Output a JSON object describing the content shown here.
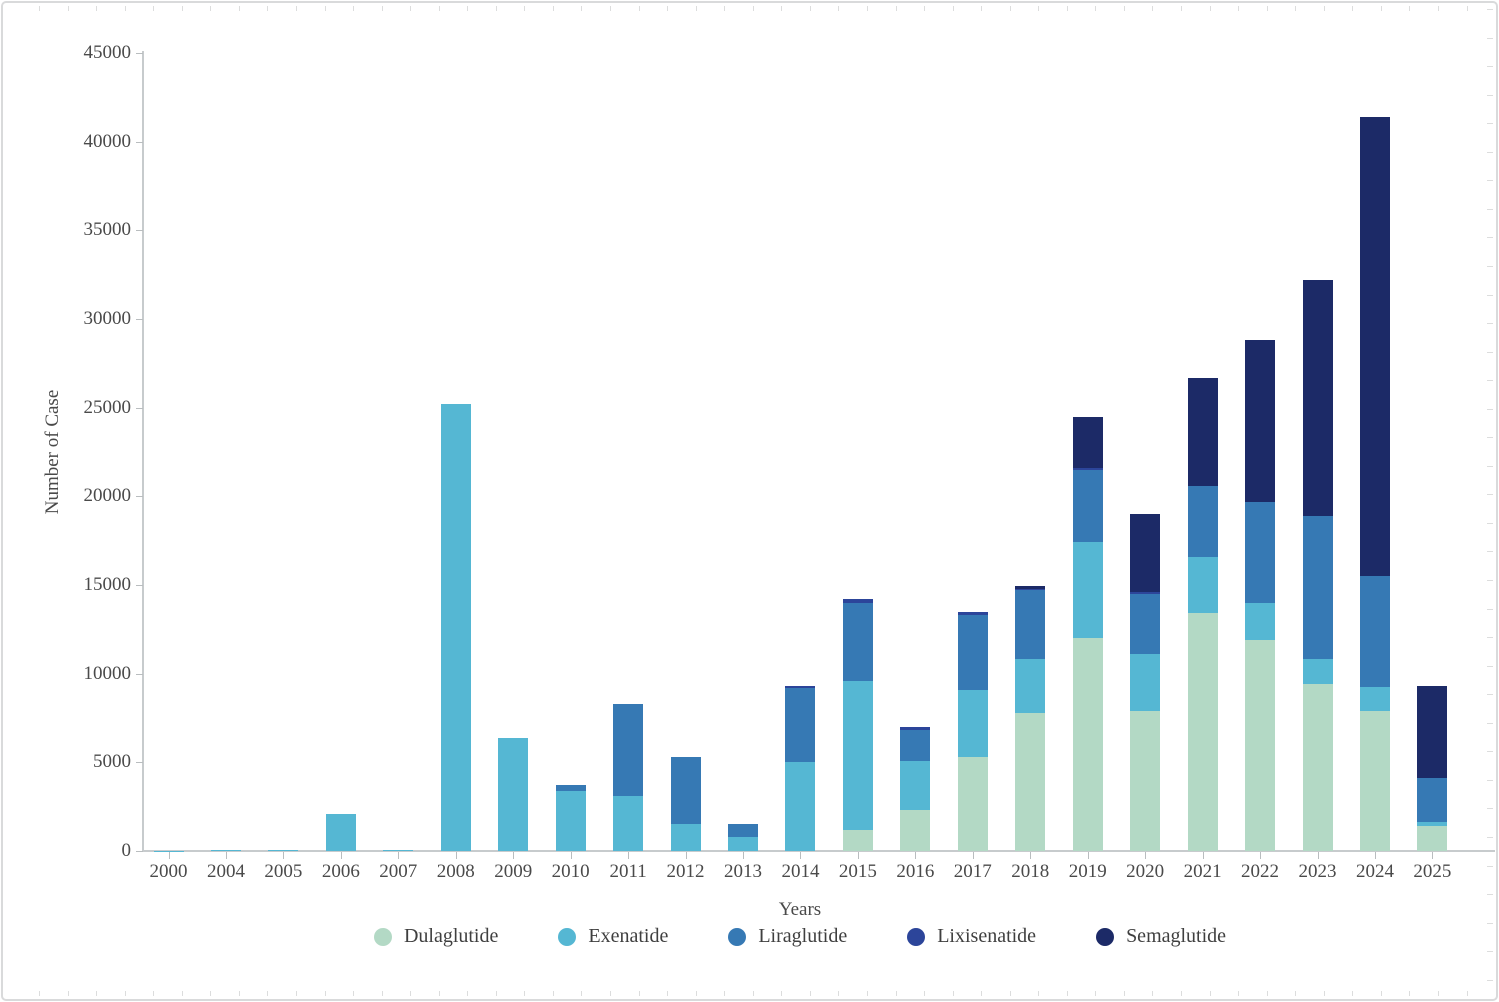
{
  "chart_data": {
    "type": "bar",
    "stacked": true,
    "title": "",
    "xlabel": "Years",
    "ylabel": "Number of Case",
    "ylim": [
      0,
      45000
    ],
    "y_tick_step": 5000,
    "y_tick_labels": [
      "0",
      "5000",
      "10000",
      "15000",
      "20000",
      "25000",
      "30000",
      "35000",
      "40000",
      "45000"
    ],
    "grid": false,
    "legend_position": "bottom",
    "categories": [
      "2000",
      "2004",
      "2005",
      "2006",
      "2007",
      "2008",
      "2009",
      "2010",
      "2011",
      "2012",
      "2013",
      "2014",
      "2015",
      "2016",
      "2017",
      "2018",
      "2019",
      "2020",
      "2021",
      "2022",
      "2023",
      "2024",
      "2025"
    ],
    "series": [
      {
        "name": "Dulaglutide",
        "color": "#b3d9c5",
        "values": [
          0,
          0,
          0,
          0,
          0,
          0,
          0,
          0,
          0,
          0,
          0,
          0,
          1200,
          2300,
          5300,
          7800,
          12000,
          7900,
          13400,
          11900,
          9400,
          7900,
          1400
        ]
      },
      {
        "name": "Exenatide",
        "color": "#55b7d3",
        "values": [
          10,
          30,
          40,
          2100,
          80,
          25200,
          6400,
          3400,
          3100,
          1500,
          800,
          5000,
          8400,
          2800,
          3800,
          3000,
          5400,
          3200,
          3200,
          2100,
          1400,
          1350,
          250
        ]
      },
      {
        "name": "Liraglutide",
        "color": "#3679b4",
        "values": [
          0,
          0,
          0,
          0,
          0,
          0,
          0,
          300,
          5200,
          3800,
          700,
          4200,
          4400,
          1700,
          4200,
          3900,
          4100,
          3400,
          4000,
          5700,
          8100,
          6250,
          2450
        ]
      },
      {
        "name": "Lixisenatide",
        "color": "#2c459a",
        "values": [
          0,
          0,
          0,
          0,
          0,
          0,
          0,
          0,
          0,
          0,
          0,
          100,
          200,
          200,
          150,
          100,
          100,
          100,
          0,
          0,
          0,
          0,
          0
        ]
      },
      {
        "name": "Semaglutide",
        "color": "#1c2a67",
        "values": [
          0,
          0,
          0,
          0,
          0,
          0,
          0,
          0,
          0,
          0,
          0,
          0,
          0,
          0,
          0,
          150,
          2900,
          4400,
          6100,
          9100,
          13300,
          25900,
          5200
        ]
      }
    ],
    "totals": [
      10,
      30,
      40,
      2100,
      80,
      25200,
      6400,
      3700,
      8300,
      5300,
      1500,
      9300,
      14200,
      7000,
      13450,
      14950,
      24500,
      19000,
      26700,
      28800,
      32200,
      41400,
      9300
    ]
  }
}
